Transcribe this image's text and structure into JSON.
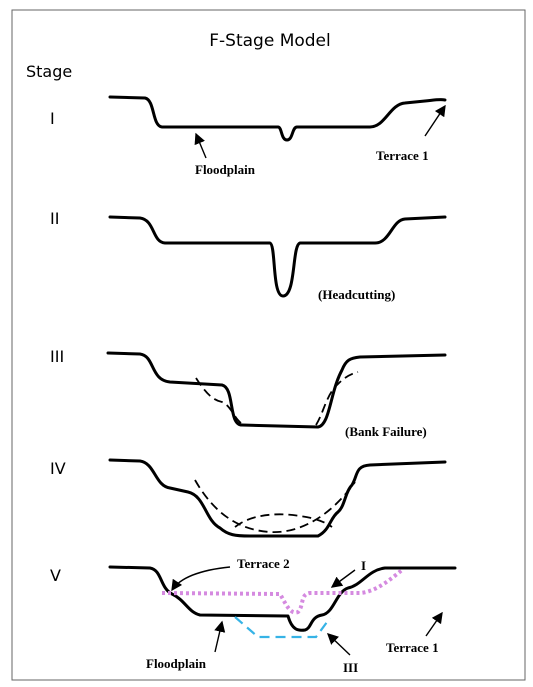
{
  "title": "F-Stage Model",
  "stage_header": "Stage",
  "stages": [
    {
      "label": "I",
      "annotations": [
        "Floodplain",
        "Terrace 1"
      ]
    },
    {
      "label": "II",
      "annotations": [
        "(Headcutting)"
      ]
    },
    {
      "label": "III",
      "annotations": [
        "(Bank Failure)"
      ]
    },
    {
      "label": "IV"
    },
    {
      "label": "V",
      "annotations": [
        "Terrace 2",
        "I",
        "Floodplain",
        "III",
        "Terrace 1"
      ]
    }
  ]
}
